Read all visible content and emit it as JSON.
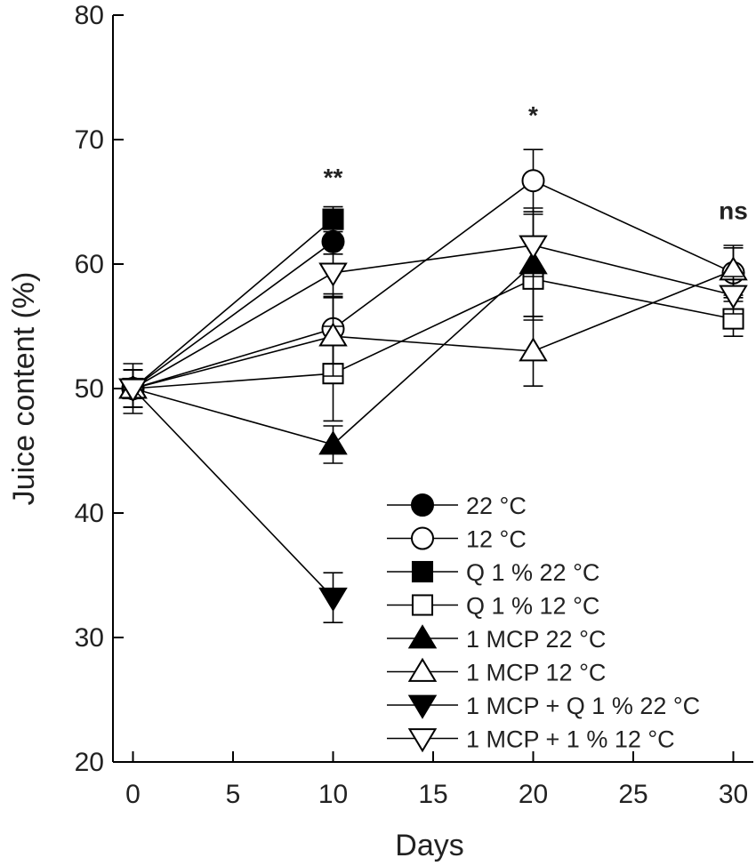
{
  "chart_data": {
    "type": "line",
    "title": "",
    "xlabel": "Days",
    "ylabel": "Juice content (%)",
    "xlim": [
      -1,
      31
    ],
    "ylim": [
      20,
      80
    ],
    "xticks": [
      0,
      5,
      10,
      15,
      20,
      25,
      30
    ],
    "yticks": [
      20,
      30,
      40,
      50,
      60,
      70,
      80
    ],
    "x": [
      0,
      10,
      20,
      30
    ],
    "grid": false,
    "legend_position": "bottom-right",
    "series": [
      {
        "name": "22 °C",
        "marker": "circle",
        "fill": "black",
        "points": [
          [
            0,
            50.0,
            1.5
          ],
          [
            10,
            61.8,
            1.0
          ]
        ]
      },
      {
        "name": "12 °C",
        "marker": "circle",
        "fill": "white",
        "points": [
          [
            0,
            50.0,
            2.0
          ],
          [
            10,
            54.8,
            2.8
          ],
          [
            20,
            66.7,
            2.5
          ],
          [
            30,
            59.3,
            2.0
          ]
        ]
      },
      {
        "name": "Q 1 % 22 °C",
        "marker": "square",
        "fill": "black",
        "points": [
          [
            0,
            50.0,
            1.5
          ],
          [
            10,
            63.6,
            1.0
          ]
        ]
      },
      {
        "name": "Q 1 % 12 °C",
        "marker": "square",
        "fill": "white",
        "points": [
          [
            0,
            50.0,
            1.5
          ],
          [
            10,
            51.2,
            3.8
          ],
          [
            20,
            58.8,
            3.0
          ],
          [
            30,
            55.6,
            1.4
          ]
        ]
      },
      {
        "name": "1 MCP 22 °C",
        "marker": "triangle-up",
        "fill": "black",
        "points": [
          [
            0,
            50.0,
            1.5
          ],
          [
            10,
            45.5,
            1.5
          ],
          [
            20,
            60.0,
            4.5
          ]
        ]
      },
      {
        "name": "1 MCP 12 °C",
        "marker": "triangle-up",
        "fill": "white",
        "points": [
          [
            0,
            50.0,
            1.5
          ],
          [
            10,
            54.2,
            3.2
          ],
          [
            20,
            53.0,
            2.8
          ],
          [
            30,
            59.5,
            2.0
          ]
        ]
      },
      {
        "name": "1 MCP + Q 1 % 22 °C",
        "marker": "triangle-down",
        "fill": "black",
        "points": [
          [
            0,
            50.0,
            1.5
          ],
          [
            10,
            33.2,
            2.0
          ]
        ]
      },
      {
        "name": "1 MCP + 1 % 12 °C",
        "marker": "triangle-down",
        "fill": "white",
        "points": [
          [
            0,
            50.0,
            1.5
          ],
          [
            10,
            59.3,
            2.0
          ],
          [
            20,
            61.5,
            2.5
          ],
          [
            30,
            57.5,
            1.5
          ]
        ]
      }
    ],
    "annotations": [
      {
        "text": "**",
        "x": 10,
        "y": 66.3
      },
      {
        "text": "*",
        "x": 20,
        "y": 71.3
      },
      {
        "text": "ns",
        "x": 30,
        "y": 63.6
      }
    ]
  }
}
